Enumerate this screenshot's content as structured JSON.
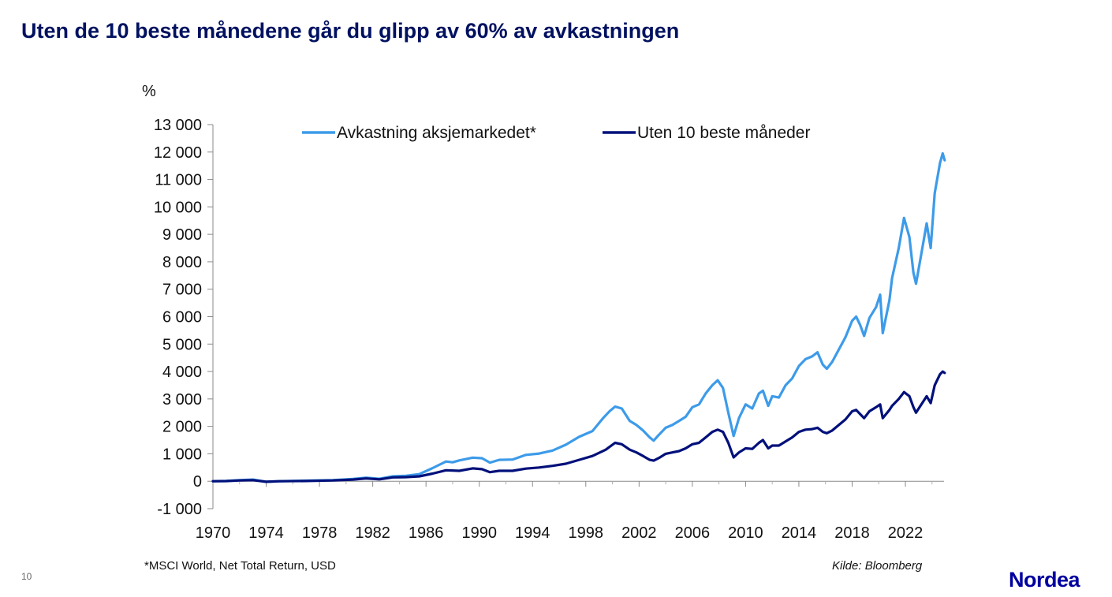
{
  "slide": {
    "title": "Uten de 10 beste månedene går du glipp av 60% av avkastningen",
    "footnote": "*MSCI World,  Net Total Return, USD",
    "source": "Kilde: Bloomberg",
    "page_number": "10",
    "logo_text": "Nordea"
  },
  "chart_data": {
    "type": "line",
    "title": "",
    "xlabel": "",
    "ylabel": "%",
    "xlim": [
      1970,
      2024.9
    ],
    "ylim": [
      -1000,
      13000
    ],
    "y_ticks": [
      -1000,
      0,
      1000,
      2000,
      3000,
      4000,
      5000,
      6000,
      7000,
      8000,
      9000,
      10000,
      11000,
      12000,
      13000
    ],
    "y_tick_labels": [
      "-1 000",
      "0",
      "1 000",
      "2 000",
      "3 000",
      "4 000",
      "5 000",
      "6 000",
      "7 000",
      "8 000",
      "9 000",
      "10 000",
      "11 000",
      "12 000",
      "13 000"
    ],
    "x_ticks": [
      1970,
      1974,
      1978,
      1982,
      1986,
      1990,
      1994,
      1998,
      2002,
      2006,
      2010,
      2014,
      2018,
      2022
    ],
    "x_tick_labels": [
      "1970",
      "1974",
      "1978",
      "1982",
      "1986",
      "1990",
      "1994",
      "1998",
      "2002",
      "2006",
      "2010",
      "2014",
      "2018",
      "2022"
    ],
    "legend_position": "top",
    "grid": false,
    "series": [
      {
        "name": "Avkastning aksjemarkedet*",
        "color": "#3d9be9",
        "points": [
          [
            1970.0,
            0
          ],
          [
            1971.0,
            10
          ],
          [
            1972.0,
            40
          ],
          [
            1973.0,
            60
          ],
          [
            1974.0,
            -20
          ],
          [
            1975.0,
            0
          ],
          [
            1977.0,
            20
          ],
          [
            1979.0,
            40
          ],
          [
            1980.5,
            80
          ],
          [
            1981.5,
            130
          ],
          [
            1982.5,
            90
          ],
          [
            1983.5,
            180
          ],
          [
            1984.5,
            200
          ],
          [
            1985.5,
            260
          ],
          [
            1986.5,
            480
          ],
          [
            1987.5,
            720
          ],
          [
            1988.0,
            690
          ],
          [
            1988.5,
            760
          ],
          [
            1989.5,
            860
          ],
          [
            1990.2,
            840
          ],
          [
            1990.8,
            680
          ],
          [
            1991.5,
            780
          ],
          [
            1992.5,
            790
          ],
          [
            1993.5,
            960
          ],
          [
            1994.5,
            1010
          ],
          [
            1995.5,
            1120
          ],
          [
            1996.5,
            1330
          ],
          [
            1997.5,
            1620
          ],
          [
            1998.5,
            1830
          ],
          [
            1999.3,
            2300
          ],
          [
            1999.8,
            2560
          ],
          [
            2000.2,
            2720
          ],
          [
            2000.7,
            2650
          ],
          [
            2001.3,
            2200
          ],
          [
            2001.8,
            2050
          ],
          [
            2002.3,
            1850
          ],
          [
            2002.8,
            1600
          ],
          [
            2003.1,
            1480
          ],
          [
            2003.5,
            1700
          ],
          [
            2004.0,
            1950
          ],
          [
            2004.5,
            2050
          ],
          [
            2005.0,
            2200
          ],
          [
            2005.5,
            2350
          ],
          [
            2006.0,
            2700
          ],
          [
            2006.5,
            2800
          ],
          [
            2007.0,
            3200
          ],
          [
            2007.5,
            3500
          ],
          [
            2007.9,
            3680
          ],
          [
            2008.3,
            3400
          ],
          [
            2008.7,
            2500
          ],
          [
            2009.1,
            1650
          ],
          [
            2009.5,
            2300
          ],
          [
            2010.0,
            2800
          ],
          [
            2010.5,
            2650
          ],
          [
            2011.0,
            3200
          ],
          [
            2011.3,
            3300
          ],
          [
            2011.7,
            2750
          ],
          [
            2012.0,
            3100
          ],
          [
            2012.5,
            3050
          ],
          [
            2013.0,
            3500
          ],
          [
            2013.5,
            3750
          ],
          [
            2014.0,
            4200
          ],
          [
            2014.5,
            4450
          ],
          [
            2015.0,
            4550
          ],
          [
            2015.4,
            4700
          ],
          [
            2015.8,
            4250
          ],
          [
            2016.1,
            4100
          ],
          [
            2016.5,
            4350
          ],
          [
            2017.0,
            4800
          ],
          [
            2017.5,
            5250
          ],
          [
            2018.0,
            5850
          ],
          [
            2018.3,
            6000
          ],
          [
            2018.6,
            5700
          ],
          [
            2018.9,
            5300
          ],
          [
            2019.3,
            5950
          ],
          [
            2019.8,
            6350
          ],
          [
            2020.1,
            6800
          ],
          [
            2020.3,
            5400
          ],
          [
            2020.8,
            6600
          ],
          [
            2021.0,
            7400
          ],
          [
            2021.5,
            8500
          ],
          [
            2021.9,
            9600
          ],
          [
            2022.3,
            8900
          ],
          [
            2022.6,
            7600
          ],
          [
            2022.8,
            7200
          ],
          [
            2023.2,
            8300
          ],
          [
            2023.6,
            9400
          ],
          [
            2023.9,
            8500
          ],
          [
            2024.2,
            10500
          ],
          [
            2024.6,
            11600
          ],
          [
            2024.8,
            11950
          ],
          [
            2024.95,
            11700
          ]
        ]
      },
      {
        "name": "Uten 10 beste måneder",
        "color": "#00107a",
        "points": [
          [
            1970.0,
            0
          ],
          [
            1971.0,
            5
          ],
          [
            1972.0,
            30
          ],
          [
            1973.0,
            40
          ],
          [
            1974.0,
            -20
          ],
          [
            1975.0,
            0
          ],
          [
            1977.0,
            10
          ],
          [
            1979.0,
            30
          ],
          [
            1980.5,
            60
          ],
          [
            1981.5,
            100
          ],
          [
            1982.5,
            70
          ],
          [
            1983.5,
            140
          ],
          [
            1984.5,
            150
          ],
          [
            1985.5,
            180
          ],
          [
            1986.5,
            280
          ],
          [
            1987.5,
            400
          ],
          [
            1988.5,
            380
          ],
          [
            1989.5,
            470
          ],
          [
            1990.2,
            440
          ],
          [
            1990.8,
            330
          ],
          [
            1991.5,
            380
          ],
          [
            1992.5,
            380
          ],
          [
            1993.5,
            460
          ],
          [
            1994.5,
            500
          ],
          [
            1995.5,
            560
          ],
          [
            1996.5,
            640
          ],
          [
            1997.5,
            780
          ],
          [
            1998.5,
            920
          ],
          [
            1999.5,
            1150
          ],
          [
            2000.2,
            1400
          ],
          [
            2000.7,
            1350
          ],
          [
            2001.3,
            1150
          ],
          [
            2001.8,
            1050
          ],
          [
            2002.3,
            920
          ],
          [
            2002.8,
            780
          ],
          [
            2003.1,
            750
          ],
          [
            2003.5,
            850
          ],
          [
            2004.0,
            1000
          ],
          [
            2004.5,
            1050
          ],
          [
            2005.0,
            1100
          ],
          [
            2005.5,
            1200
          ],
          [
            2006.0,
            1350
          ],
          [
            2006.5,
            1400
          ],
          [
            2007.0,
            1600
          ],
          [
            2007.5,
            1800
          ],
          [
            2007.9,
            1880
          ],
          [
            2008.3,
            1800
          ],
          [
            2008.7,
            1400
          ],
          [
            2009.1,
            870
          ],
          [
            2009.5,
            1050
          ],
          [
            2010.0,
            1200
          ],
          [
            2010.5,
            1180
          ],
          [
            2011.0,
            1400
          ],
          [
            2011.3,
            1500
          ],
          [
            2011.7,
            1200
          ],
          [
            2012.0,
            1300
          ],
          [
            2012.5,
            1300
          ],
          [
            2013.0,
            1450
          ],
          [
            2013.5,
            1600
          ],
          [
            2014.0,
            1800
          ],
          [
            2014.5,
            1880
          ],
          [
            2015.0,
            1900
          ],
          [
            2015.4,
            1950
          ],
          [
            2015.8,
            1800
          ],
          [
            2016.1,
            1750
          ],
          [
            2016.5,
            1850
          ],
          [
            2017.0,
            2050
          ],
          [
            2017.5,
            2250
          ],
          [
            2018.0,
            2550
          ],
          [
            2018.3,
            2600
          ],
          [
            2018.6,
            2450
          ],
          [
            2018.9,
            2300
          ],
          [
            2019.3,
            2550
          ],
          [
            2019.8,
            2700
          ],
          [
            2020.1,
            2800
          ],
          [
            2020.3,
            2300
          ],
          [
            2020.8,
            2600
          ],
          [
            2021.0,
            2750
          ],
          [
            2021.5,
            3000
          ],
          [
            2021.9,
            3250
          ],
          [
            2022.3,
            3100
          ],
          [
            2022.6,
            2700
          ],
          [
            2022.8,
            2500
          ],
          [
            2023.2,
            2800
          ],
          [
            2023.6,
            3100
          ],
          [
            2023.9,
            2850
          ],
          [
            2024.2,
            3500
          ],
          [
            2024.6,
            3900
          ],
          [
            2024.8,
            4000
          ],
          [
            2024.95,
            3950
          ]
        ]
      }
    ]
  }
}
